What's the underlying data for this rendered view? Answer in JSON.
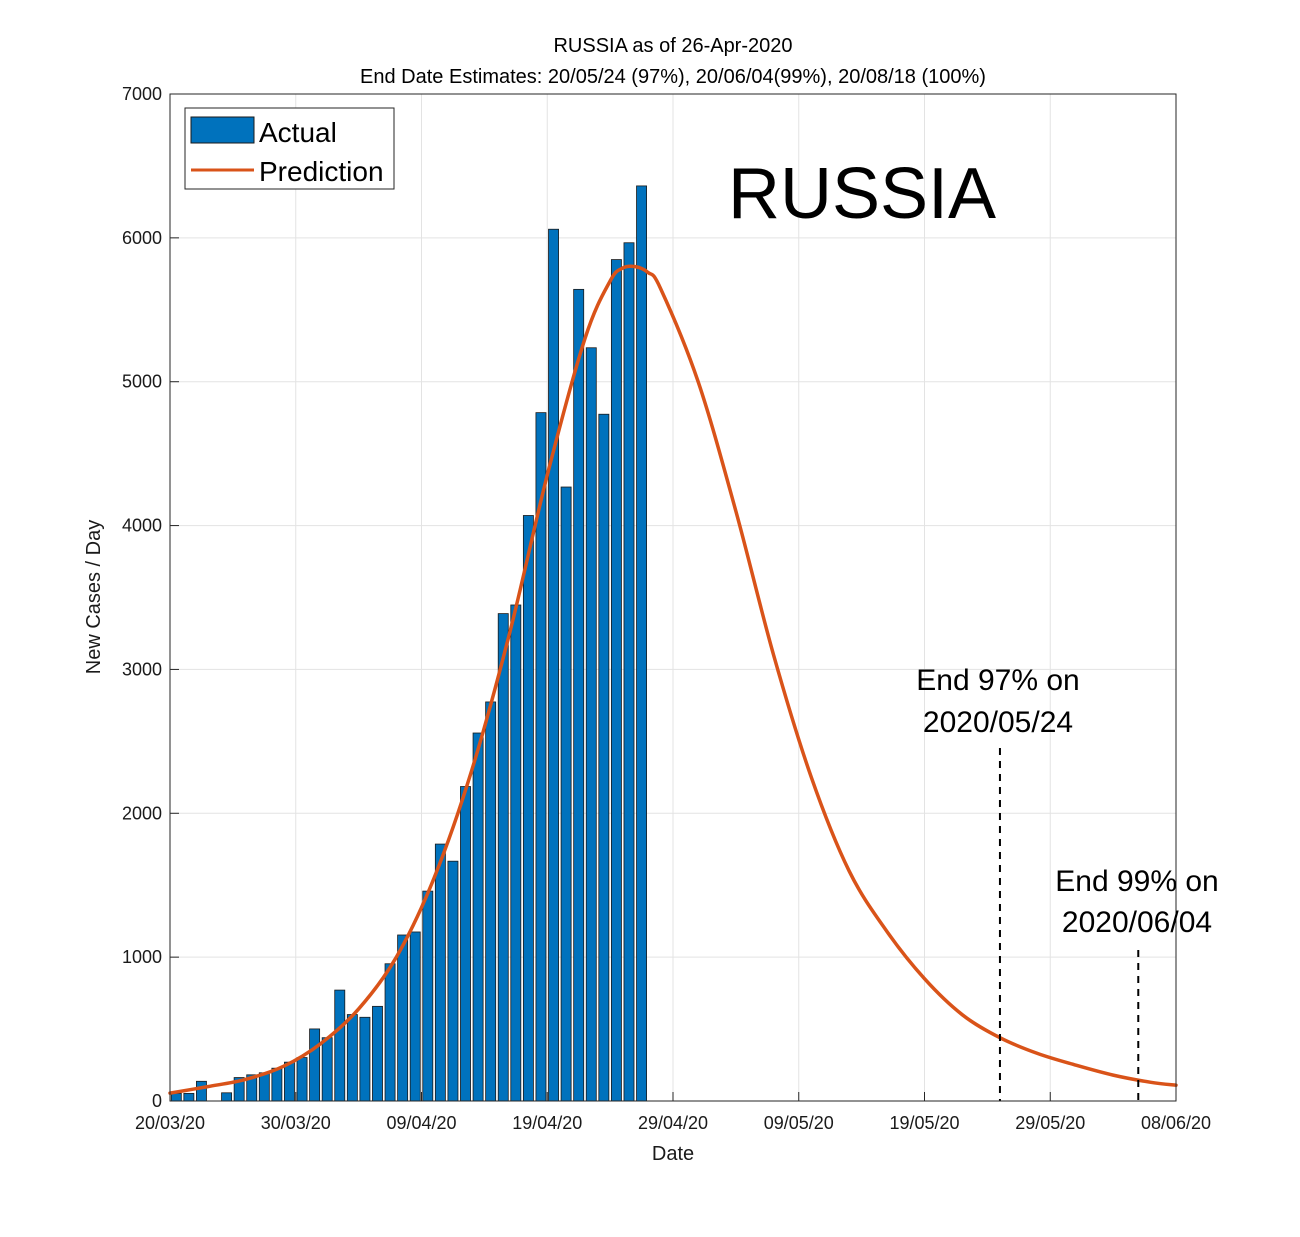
{
  "chart_data": {
    "type": "bar",
    "title": "RUSSIA as of 26-Apr-2020",
    "subtitle": "End Date Estimates: 20/05/24 (97%), 20/06/04(99%), 20/08/18 (100%)",
    "xlabel": "Date",
    "ylabel": "New Cases / Day",
    "ylim": [
      0,
      7000
    ],
    "yticks": [
      0,
      1000,
      2000,
      3000,
      4000,
      5000,
      6000,
      7000
    ],
    "xlim": [
      "2020-03-20",
      "2020-06-08"
    ],
    "xticks": [
      {
        "date": "2020-03-20",
        "label": "20/03/20"
      },
      {
        "date": "2020-03-30",
        "label": "30/03/20"
      },
      {
        "date": "2020-04-09",
        "label": "09/04/20"
      },
      {
        "date": "2020-04-19",
        "label": "19/04/20"
      },
      {
        "date": "2020-04-29",
        "label": "29/04/20"
      },
      {
        "date": "2020-05-09",
        "label": "09/05/20"
      },
      {
        "date": "2020-05-19",
        "label": "19/05/20"
      },
      {
        "date": "2020-05-29",
        "label": "29/05/20"
      },
      {
        "date": "2020-06-08",
        "label": "08/06/20"
      }
    ],
    "grid": true,
    "legend": {
      "placement": "top-left",
      "entries": [
        "Actual",
        "Prediction"
      ]
    },
    "series": [
      {
        "name": "Actual",
        "kind": "bar",
        "color": "#0072BD",
        "points": [
          {
            "x": "2020-03-20",
            "y": 53
          },
          {
            "x": "2020-03-21",
            "y": 53
          },
          {
            "x": "2020-03-22",
            "y": 137
          },
          {
            "x": "2020-03-23",
            "y": 0
          },
          {
            "x": "2020-03-24",
            "y": 57
          },
          {
            "x": "2020-03-25",
            "y": 163
          },
          {
            "x": "2020-03-26",
            "y": 182
          },
          {
            "x": "2020-03-27",
            "y": 196
          },
          {
            "x": "2020-03-28",
            "y": 228
          },
          {
            "x": "2020-03-29",
            "y": 270
          },
          {
            "x": "2020-03-30",
            "y": 302
          },
          {
            "x": "2020-03-31",
            "y": 501
          },
          {
            "x": "2020-04-01",
            "y": 440
          },
          {
            "x": "2020-04-02",
            "y": 771
          },
          {
            "x": "2020-04-03",
            "y": 601
          },
          {
            "x": "2020-04-04",
            "y": 582
          },
          {
            "x": "2020-04-05",
            "y": 658
          },
          {
            "x": "2020-04-06",
            "y": 954
          },
          {
            "x": "2020-04-07",
            "y": 1154
          },
          {
            "x": "2020-04-08",
            "y": 1175
          },
          {
            "x": "2020-04-09",
            "y": 1459
          },
          {
            "x": "2020-04-10",
            "y": 1786
          },
          {
            "x": "2020-04-11",
            "y": 1667
          },
          {
            "x": "2020-04-12",
            "y": 2186
          },
          {
            "x": "2020-04-13",
            "y": 2558
          },
          {
            "x": "2020-04-14",
            "y": 2774
          },
          {
            "x": "2020-04-15",
            "y": 3388
          },
          {
            "x": "2020-04-16",
            "y": 3448
          },
          {
            "x": "2020-04-17",
            "y": 4070
          },
          {
            "x": "2020-04-18",
            "y": 4785
          },
          {
            "x": "2020-04-19",
            "y": 6060
          },
          {
            "x": "2020-04-20",
            "y": 4268
          },
          {
            "x": "2020-04-21",
            "y": 5642
          },
          {
            "x": "2020-04-22",
            "y": 5236
          },
          {
            "x": "2020-04-23",
            "y": 4774
          },
          {
            "x": "2020-04-24",
            "y": 5849
          },
          {
            "x": "2020-04-25",
            "y": 5966
          },
          {
            "x": "2020-04-26",
            "y": 6361
          }
        ]
      },
      {
        "name": "Prediction",
        "kind": "line",
        "color": "#D95319",
        "points": [
          {
            "x": "2020-03-20",
            "y": 55
          },
          {
            "x": "2020-03-23",
            "y": 100
          },
          {
            "x": "2020-03-26",
            "y": 150
          },
          {
            "x": "2020-03-29",
            "y": 240
          },
          {
            "x": "2020-04-01",
            "y": 400
          },
          {
            "x": "2020-04-04",
            "y": 640
          },
          {
            "x": "2020-04-07",
            "y": 1000
          },
          {
            "x": "2020-04-10",
            "y": 1550
          },
          {
            "x": "2020-04-13",
            "y": 2300
          },
          {
            "x": "2020-04-16",
            "y": 3250
          },
          {
            "x": "2020-04-19",
            "y": 4350
          },
          {
            "x": "2020-04-22",
            "y": 5300
          },
          {
            "x": "2020-04-24",
            "y": 5700
          },
          {
            "x": "2020-04-25",
            "y": 5790
          },
          {
            "x": "2020-04-26",
            "y": 5800
          },
          {
            "x": "2020-04-27",
            "y": 5760
          },
          {
            "x": "2020-04-28",
            "y": 5650
          },
          {
            "x": "2020-05-01",
            "y": 5000
          },
          {
            "x": "2020-05-04",
            "y": 4100
          },
          {
            "x": "2020-05-07",
            "y": 3100
          },
          {
            "x": "2020-05-10",
            "y": 2250
          },
          {
            "x": "2020-05-13",
            "y": 1600
          },
          {
            "x": "2020-05-16",
            "y": 1180
          },
          {
            "x": "2020-05-19",
            "y": 850
          },
          {
            "x": "2020-05-22",
            "y": 600
          },
          {
            "x": "2020-05-25",
            "y": 440
          },
          {
            "x": "2020-05-28",
            "y": 330
          },
          {
            "x": "2020-05-31",
            "y": 250
          },
          {
            "x": "2020-06-03",
            "y": 180
          },
          {
            "x": "2020-06-06",
            "y": 130
          },
          {
            "x": "2020-06-08",
            "y": 110
          }
        ]
      }
    ],
    "annotations": [
      {
        "lines": [
          "End 97% on",
          "2020/05/24"
        ],
        "marker_date": "2020-05-25"
      },
      {
        "lines": [
          "End 99% on",
          "2020/06/04"
        ],
        "marker_date": "2020-06-05"
      }
    ],
    "watermark_label": "RUSSIA"
  }
}
